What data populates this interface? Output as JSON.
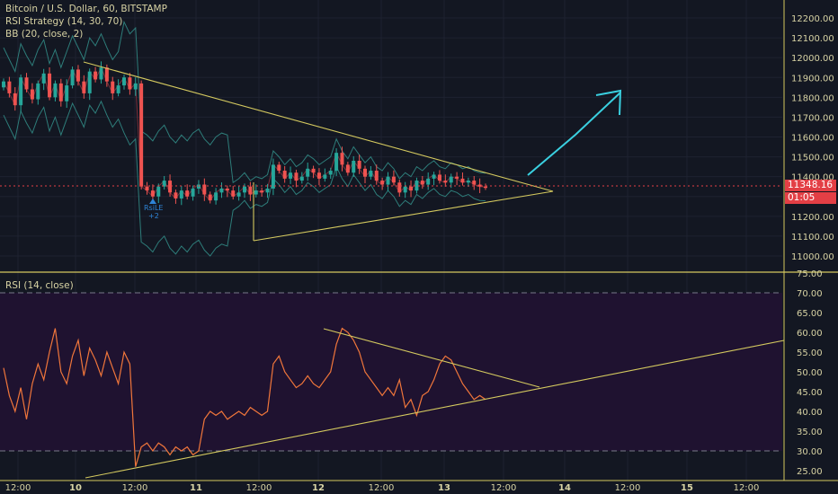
{
  "legend": {
    "symbol": "Bitcoin / U.S. Dollar, 60, BITSTAMP",
    "strategy": "RSI Strategy (14, 30, 70)",
    "bb": "BB (20, close, 2)",
    "rsi": "RSI (14, close)"
  },
  "price_axis": [
    "12200.00",
    "12100.00",
    "12000.00",
    "11900.00",
    "11800.00",
    "11700.00",
    "11600.00",
    "11500.00",
    "11400.00",
    "11300.00",
    "11200.00",
    "11100.00",
    "11000.00"
  ],
  "rsi_axis": [
    "75.00",
    "70.00",
    "65.00",
    "60.00",
    "55.00",
    "50.00",
    "45.00",
    "40.00",
    "35.00",
    "30.00",
    "25.00"
  ],
  "time_axis": [
    "12:00",
    "10",
    "12:00",
    "11",
    "12:00",
    "12",
    "12:00",
    "13",
    "12:00",
    "14",
    "12:00",
    "15",
    "12:00"
  ],
  "current_price": "11348.16",
  "countdown": "01:05",
  "signal": {
    "label": "RsiLE",
    "qty": "+2"
  },
  "colors": {
    "bg": "#131722",
    "up": "#26a69a",
    "down": "#ef5350",
    "trend": "#d4c95f",
    "arrow": "#3ad0e0",
    "rsi": "#f0763b",
    "band": "#2e7d7a"
  },
  "chart_data": [
    {
      "type": "candlestick",
      "title": "Bitcoin / U.S. Dollar, 60, BITSTAMP",
      "ylim": [
        10950,
        12250
      ],
      "x_ticks": [
        "12:00",
        "10",
        "12:00",
        "11",
        "12:00",
        "12",
        "12:00",
        "13",
        "12:00",
        "14",
        "12:00",
        "15",
        "12:00"
      ],
      "closes": [
        11880,
        11820,
        11760,
        11900,
        11840,
        11790,
        11870,
        11920,
        11800,
        11870,
        11780,
        11860,
        11940,
        11880,
        11820,
        11930,
        11890,
        11950,
        11880,
        11820,
        11860,
        11900,
        11840,
        11870,
        11350,
        11330,
        11300,
        11350,
        11380,
        11320,
        11290,
        11330,
        11300,
        11340,
        11360,
        11310,
        11280,
        11320,
        11340,
        11330,
        11300,
        11320,
        11350,
        11310,
        11330,
        11320,
        11340,
        11460,
        11430,
        11390,
        11420,
        11380,
        11400,
        11440,
        11420,
        11390,
        11410,
        11430,
        11520,
        11460,
        11420,
        11480,
        11440,
        11400,
        11430,
        11380,
        11360,
        11400,
        11370,
        11320,
        11350,
        11330,
        11380,
        11360,
        11390,
        11410,
        11380,
        11370,
        11400,
        11390,
        11370,
        11380,
        11360,
        11350,
        11348
      ],
      "rsi": {
        "name": "RSI (14, close)",
        "ylim": [
          23,
          76
        ],
        "bands": [
          30,
          70
        ],
        "values": [
          51,
          44,
          40,
          46,
          38,
          47,
          52,
          48,
          55,
          61,
          50,
          47,
          54,
          58,
          49,
          56,
          53,
          49,
          55,
          51,
          47,
          55,
          52,
          26,
          31,
          32,
          30,
          32,
          31,
          29,
          31,
          30,
          31,
          29,
          30,
          38,
          40,
          39,
          40,
          38,
          39,
          40,
          39,
          41,
          40,
          39,
          40,
          52,
          54,
          50,
          48,
          46,
          47,
          49,
          47,
          46,
          48,
          50,
          57,
          61,
          60,
          58,
          55,
          50,
          48,
          46,
          44,
          46,
          44,
          48,
          41,
          43,
          39,
          44,
          45,
          48,
          52,
          54,
          53,
          50,
          47,
          45,
          43,
          44,
          43
        ]
      },
      "annotations": [
        "symmetrical triangle",
        "projected breakout arrow"
      ]
    }
  ]
}
